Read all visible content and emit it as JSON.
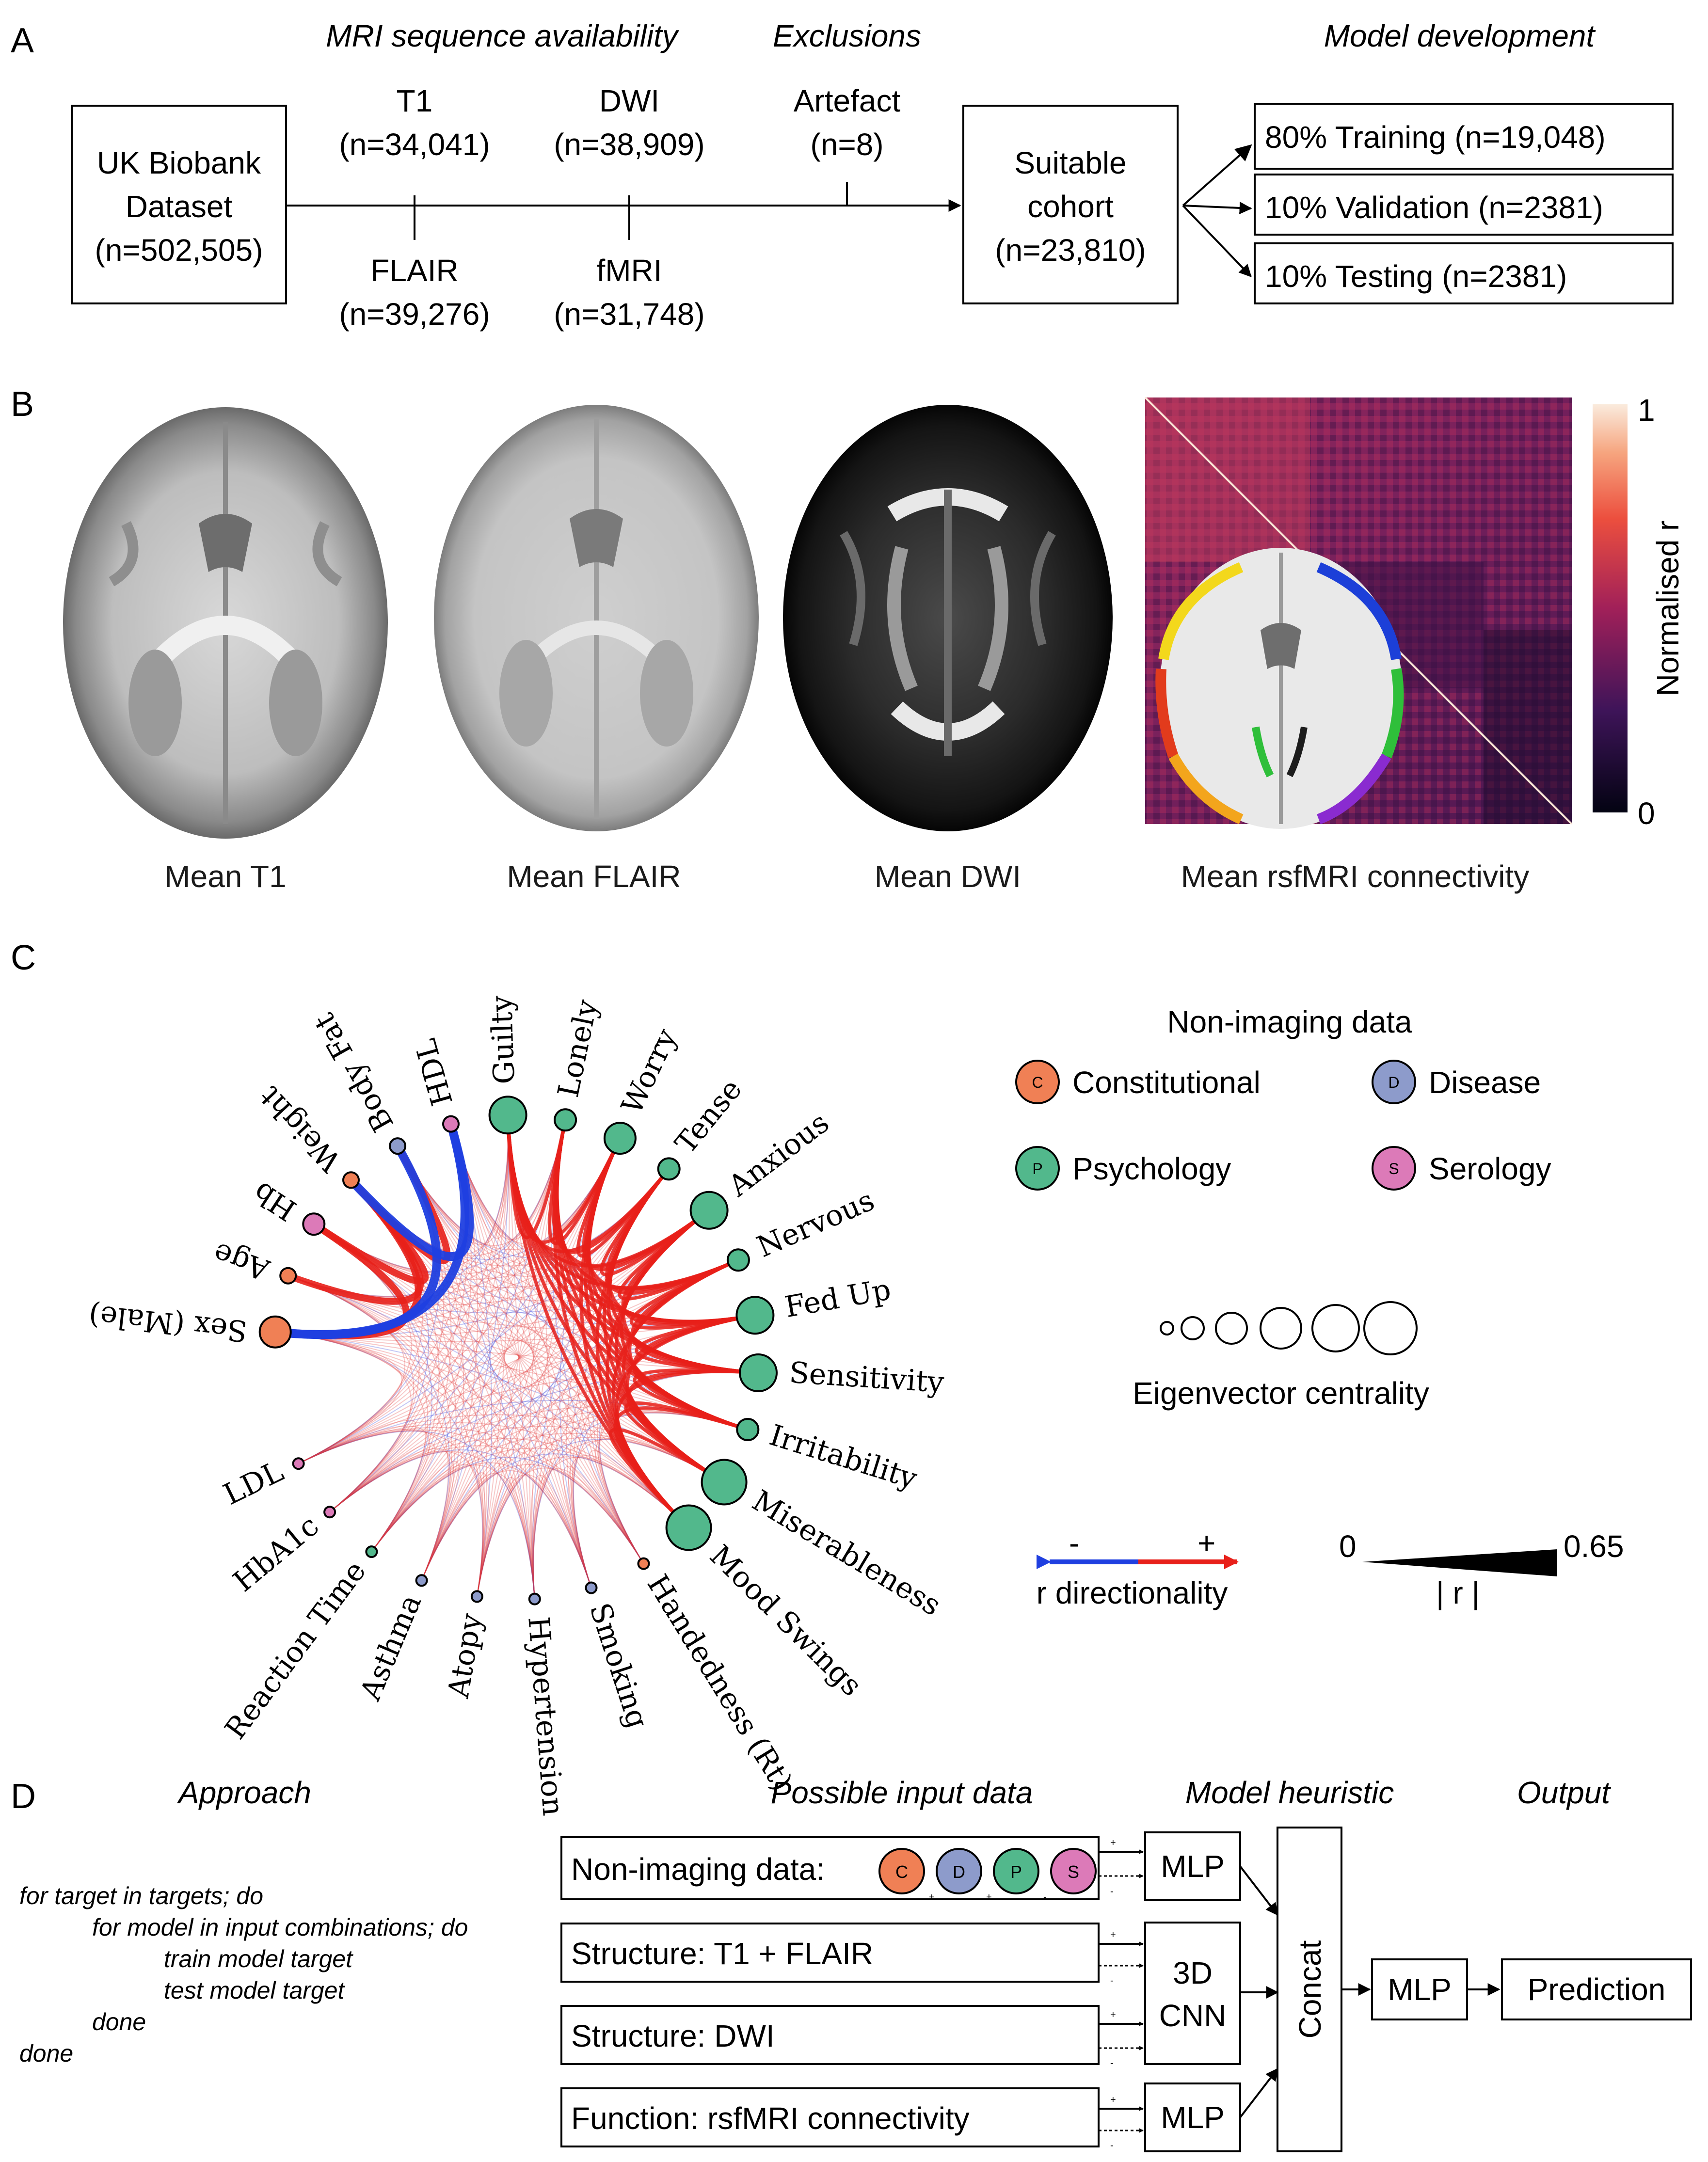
{
  "panel_labels": {
    "a": "A",
    "b": "B",
    "c": "C",
    "d": "D"
  },
  "panel_a": {
    "headers": {
      "mri": "MRI sequence availability",
      "exclusions": "Exclusions",
      "model_dev": "Model development"
    },
    "ukb_box": [
      "UK Biobank",
      "Dataset",
      "(n=502,505)"
    ],
    "t1": {
      "label": "T1",
      "n": "(n=34,041)"
    },
    "dwi": {
      "label": "DWI",
      "n": "(n=38,909)"
    },
    "artefact": {
      "label": "Artefact",
      "n": "(n=8)"
    },
    "flair": {
      "label": "FLAIR",
      "n": "(n=39,276)"
    },
    "fmri": {
      "label": "fMRI",
      "n": "(n=31,748)"
    },
    "cohort_box": [
      "Suitable",
      "cohort",
      "(n=23,810)"
    ],
    "splits": [
      "80% Training (n=19,048)",
      "10% Validation (n=2381)",
      "10% Testing (n=2381)"
    ]
  },
  "panel_b": {
    "captions": [
      "Mean T1",
      "Mean FLAIR",
      "Mean DWI",
      "Mean rsfMRI connectivity"
    ],
    "colorbar": {
      "label": "Normalised r",
      "max": "1",
      "min": "0"
    }
  },
  "panel_c": {
    "legend_title": "Non-imaging data",
    "categories": [
      {
        "letter": "C",
        "name": "Constitutional",
        "color": "#f08055"
      },
      {
        "letter": "D",
        "name": "Disease",
        "color": "#8d9bcb"
      },
      {
        "letter": "P",
        "name": "Psychology",
        "color": "#52b88c"
      },
      {
        "letter": "S",
        "name": "Serology",
        "color": "#dc7ab8"
      }
    ],
    "centrality_label": "Eigenvector centrality",
    "direction_minus": "-",
    "direction_plus": "+",
    "direction_label": "r directionality",
    "abs_r_min": "0",
    "abs_r_max": "0.65",
    "abs_r_label": "| r |",
    "nodes": [
      {
        "name": "Sex (Male)",
        "cat": "C",
        "size": 3
      },
      {
        "name": "Age",
        "cat": "C",
        "size": 1
      },
      {
        "name": "Hb",
        "cat": "S",
        "size": 2
      },
      {
        "name": "Weight",
        "cat": "C",
        "size": 1
      },
      {
        "name": "Body Fat",
        "cat": "D",
        "size": 1
      },
      {
        "name": "HDL",
        "cat": "S",
        "size": 1
      },
      {
        "name": "Guilty",
        "cat": "P",
        "size": 4
      },
      {
        "name": "Lonely",
        "cat": "P",
        "size": 2
      },
      {
        "name": "Worry",
        "cat": "P",
        "size": 3
      },
      {
        "name": "Tense",
        "cat": "P",
        "size": 2
      },
      {
        "name": "Anxious",
        "cat": "P",
        "size": 4
      },
      {
        "name": "Nervous",
        "cat": "P",
        "size": 2
      },
      {
        "name": "Fed Up",
        "cat": "P",
        "size": 4
      },
      {
        "name": "Sensitivity",
        "cat": "P",
        "size": 4
      },
      {
        "name": "Irritability",
        "cat": "P",
        "size": 2
      },
      {
        "name": "Miserableness",
        "cat": "P",
        "size": 5
      },
      {
        "name": "Mood Swings",
        "cat": "P",
        "size": 5
      },
      {
        "name": "Handedness (Rt)",
        "cat": "C",
        "size": 0
      },
      {
        "name": "Smoking",
        "cat": "D",
        "size": 0
      },
      {
        "name": "Hypertension",
        "cat": "D",
        "size": 0
      },
      {
        "name": "Atopy",
        "cat": "D",
        "size": 0
      },
      {
        "name": "Asthma",
        "cat": "D",
        "size": 0
      },
      {
        "name": "Reaction Time",
        "cat": "P",
        "size": 0
      },
      {
        "name": "HbA1c",
        "cat": "S",
        "size": 0
      },
      {
        "name": "LDL",
        "cat": "S",
        "size": 0
      }
    ]
  },
  "panel_d": {
    "headers": {
      "approach": "Approach",
      "input": "Possible input data",
      "heuristic": "Model heuristic",
      "output": "Output"
    },
    "code": [
      "for target in targets; do",
      "for model in input combinations; do",
      "train model target",
      "test model target",
      "done",
      "done"
    ],
    "inputs": [
      "Non-imaging data:",
      "Structure: T1 + FLAIR",
      "Structure: DWI",
      "Function: rsfMRI connectivity"
    ],
    "input_badges": [
      "C",
      "D",
      "P",
      "S"
    ],
    "mlp_top": "MLP",
    "cnn": [
      "3D",
      "CNN"
    ],
    "mlp_bottom": "MLP",
    "concat": "Concat",
    "mlp_out": "MLP",
    "prediction": "Prediction",
    "plus": "+",
    "minus": "-"
  }
}
